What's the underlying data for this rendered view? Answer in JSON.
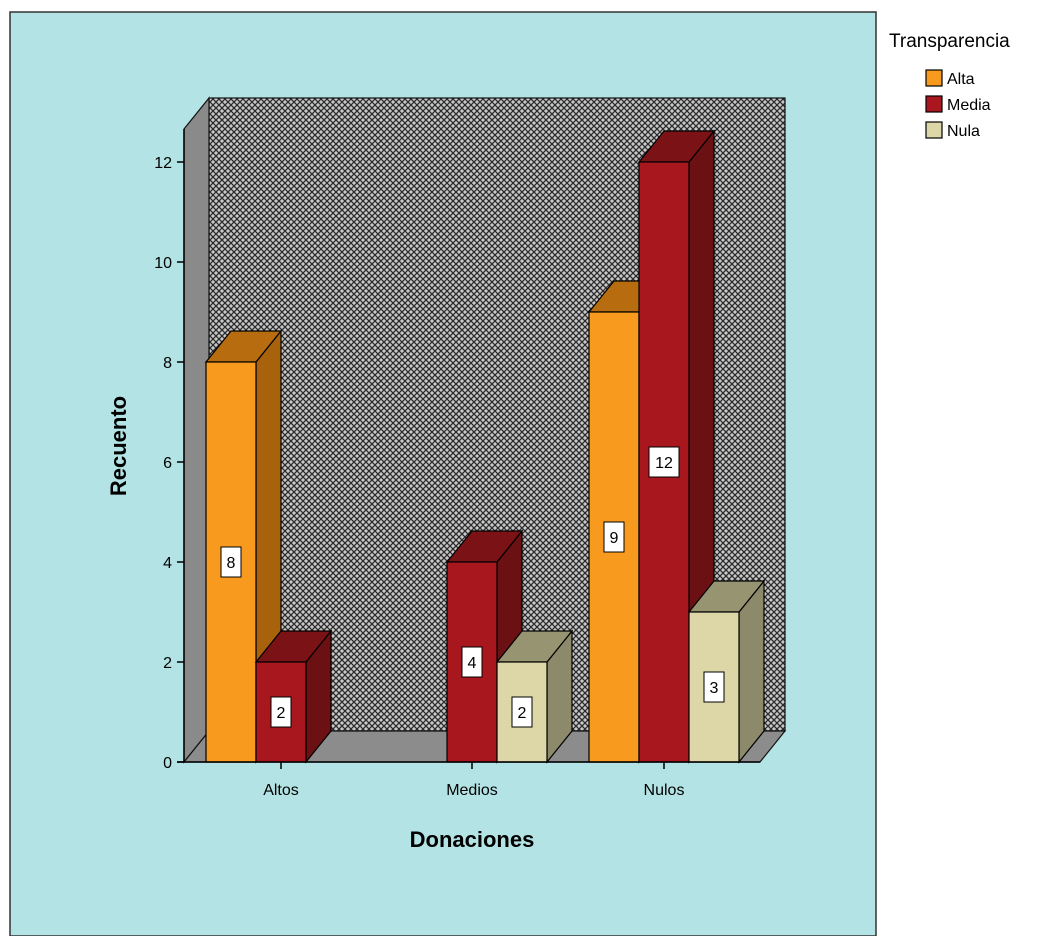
{
  "chart_data": {
    "type": "bar",
    "style": "3d-clustered",
    "categories": [
      "Altos",
      "Medios",
      "Nulos"
    ],
    "series": [
      {
        "name": "Alta",
        "values": [
          8,
          0,
          9
        ],
        "color": "#F79A1E",
        "side_color": "#A8620C",
        "top_color": "#B86C10"
      },
      {
        "name": "Media",
        "values": [
          2,
          4,
          12
        ],
        "color": "#A8171D",
        "side_color": "#6B1013",
        "top_color": "#7A1216"
      },
      {
        "name": "Nula",
        "values": [
          0,
          2,
          3
        ],
        "color": "#DDD6A6",
        "side_color": "#8C8A6A",
        "top_color": "#979472"
      }
    ],
    "xlabel": "Donaciones",
    "ylabel": "Recuento",
    "ylim": [
      0,
      12
    ],
    "yticks": [
      0,
      2,
      4,
      6,
      8,
      10,
      12
    ],
    "grid": false,
    "legend": {
      "title": "Transparencia",
      "placement": "top-right"
    },
    "data_labels": true,
    "plot_background": "#B3E3E4",
    "back_wall": "crosshatch-gray",
    "floor_color": "#8C8C8C"
  }
}
